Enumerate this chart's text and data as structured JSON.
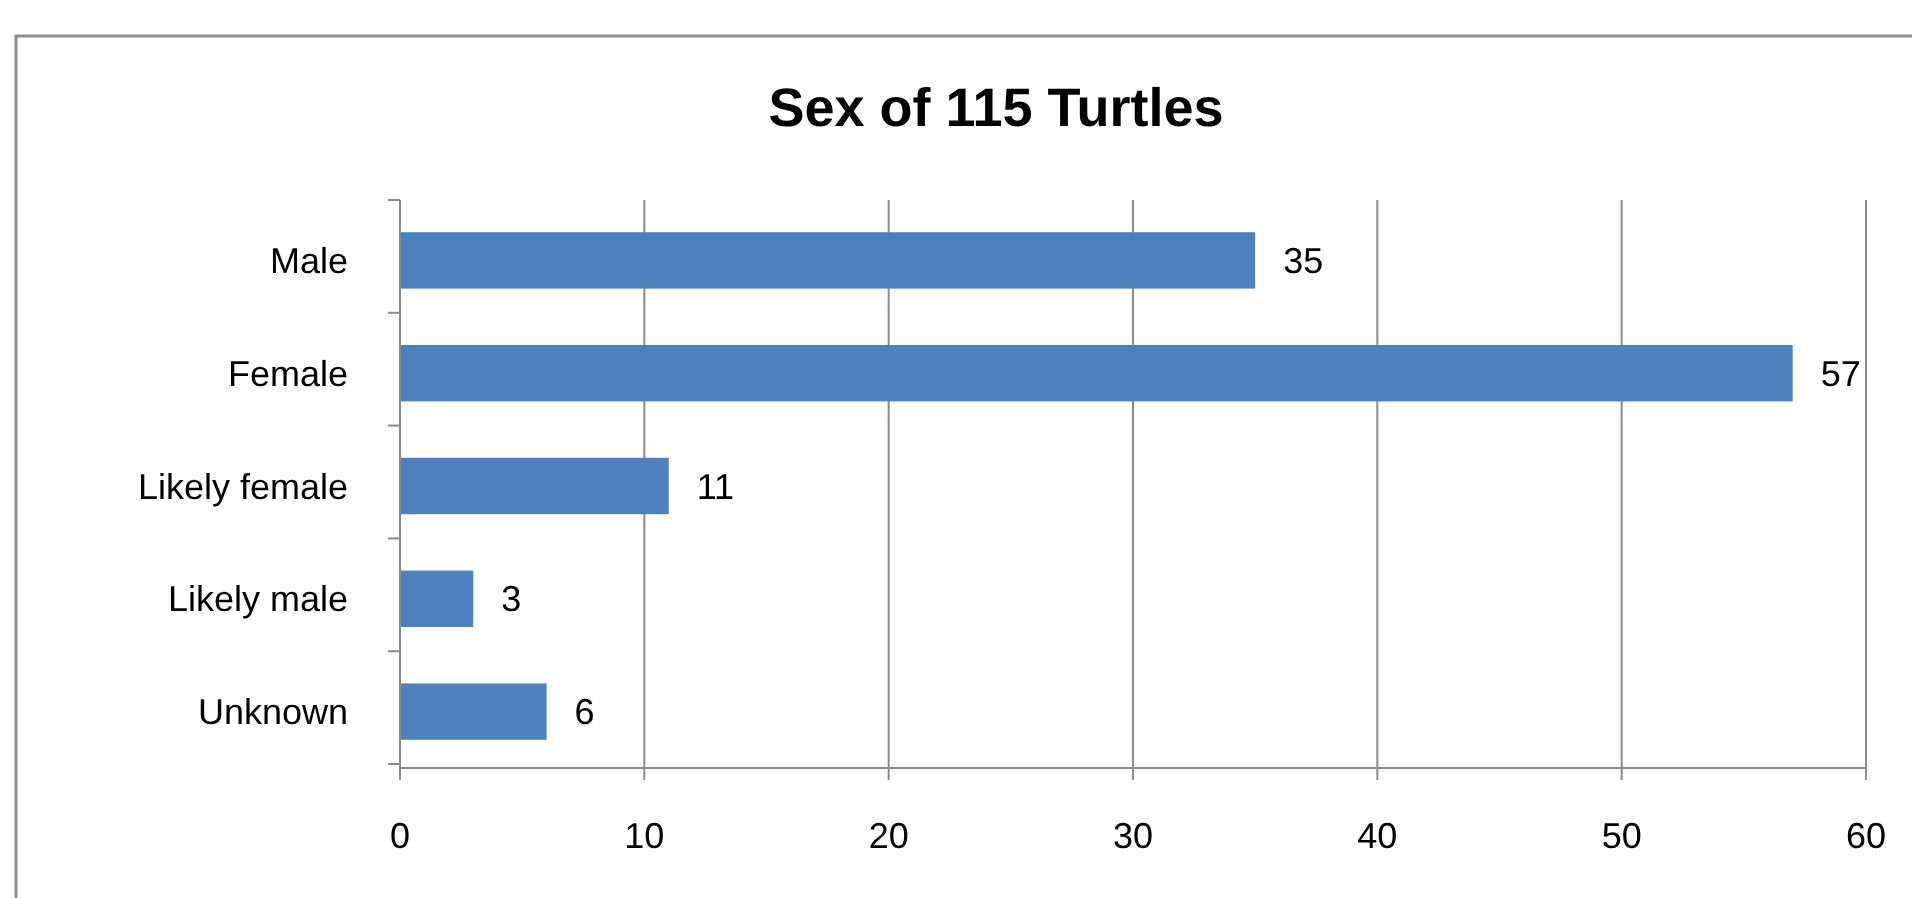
{
  "chart_data": {
    "type": "bar",
    "orientation": "horizontal",
    "title": "Sex of 115 Turtles",
    "categories": [
      "Male",
      "Female",
      "Likely female",
      "Likely male",
      "Unknown"
    ],
    "values": [
      35,
      57,
      11,
      3,
      6
    ],
    "color": "#4f81bd",
    "xlim": [
      0,
      60
    ],
    "xticks": [
      0,
      10,
      20,
      30,
      40,
      50,
      60
    ],
    "grid": "x",
    "data_labels": true
  }
}
